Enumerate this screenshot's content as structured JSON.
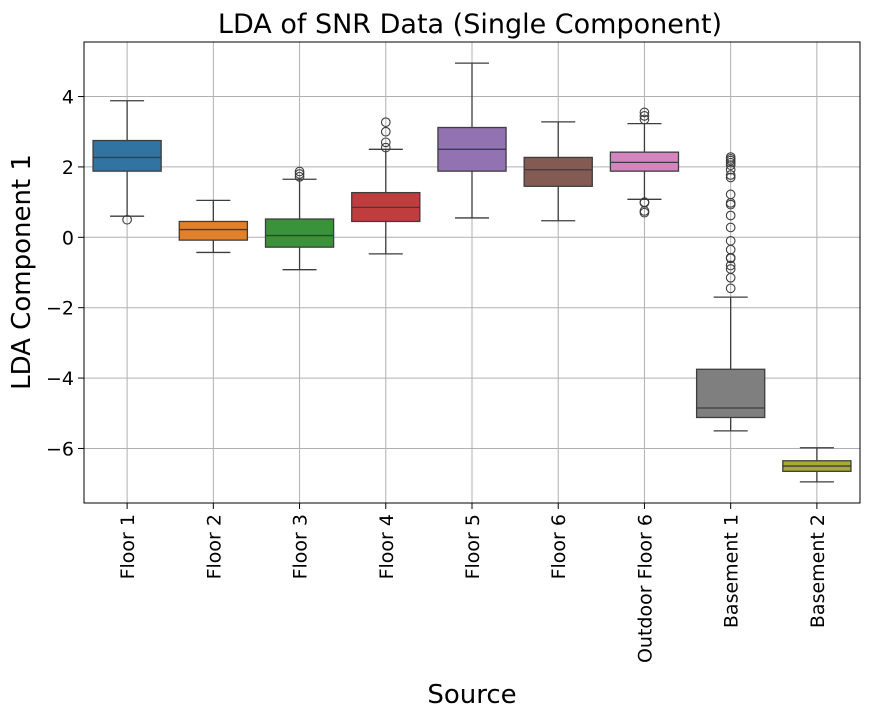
{
  "chart_data": {
    "type": "box",
    "title": "LDA of SNR Data (Single Component)",
    "xlabel": "Source",
    "ylabel": "LDA Component 1",
    "ylim": [
      -7.55,
      5.55
    ],
    "yticks": [
      -6,
      -4,
      -2,
      0,
      2,
      4
    ],
    "ytick_labels": [
      "−6",
      "−4",
      "−2",
      "0",
      "2",
      "4"
    ],
    "grid": true,
    "categories": [
      "Floor 1",
      "Floor 2",
      "Floor 3",
      "Floor 4",
      "Floor 5",
      "Floor 6",
      "Outdoor Floor 6",
      "Basement 1",
      "Basement 2"
    ],
    "boxes": [
      {
        "category": "Floor 1",
        "whisker_low": 0.6,
        "q1": 1.88,
        "median": 2.27,
        "q3": 2.75,
        "whisker_high": 3.88,
        "outliers": [
          0.5
        ],
        "color": "#3274a1"
      },
      {
        "category": "Floor 2",
        "whisker_low": -0.43,
        "q1": -0.08,
        "median": 0.22,
        "q3": 0.45,
        "whisker_high": 1.05,
        "outliers": [],
        "color": "#e1812c"
      },
      {
        "category": "Floor 3",
        "whisker_low": -0.92,
        "q1": -0.28,
        "median": 0.05,
        "q3": 0.52,
        "whisker_high": 1.65,
        "outliers": [
          1.72,
          1.8,
          1.87
        ],
        "color": "#3a923a"
      },
      {
        "category": "Floor 4",
        "whisker_low": -0.47,
        "q1": 0.45,
        "median": 0.85,
        "q3": 1.27,
        "whisker_high": 2.5,
        "outliers": [
          2.55,
          2.7,
          3.0,
          3.27
        ],
        "color": "#c03d3e"
      },
      {
        "category": "Floor 5",
        "whisker_low": 0.55,
        "q1": 1.88,
        "median": 2.5,
        "q3": 3.12,
        "whisker_high": 4.95,
        "outliers": [],
        "color": "#9372b2"
      },
      {
        "category": "Floor 6",
        "whisker_low": 0.47,
        "q1": 1.45,
        "median": 1.92,
        "q3": 2.27,
        "whisker_high": 3.28,
        "outliers": [],
        "color": "#845b53"
      },
      {
        "category": "Outdoor Floor 6",
        "whisker_low": 1.08,
        "q1": 1.88,
        "median": 2.13,
        "q3": 2.42,
        "whisker_high": 3.23,
        "outliers": [
          0.7,
          0.75,
          0.98,
          1.0,
          3.35,
          3.45,
          3.55
        ],
        "color": "#d684bd"
      },
      {
        "category": "Basement 1",
        "whisker_low": -5.5,
        "q1": -5.12,
        "median": -4.85,
        "q3": -3.75,
        "whisker_high": -1.7,
        "outliers": [
          -1.45,
          -1.15,
          -0.9,
          -0.8,
          -0.6,
          -0.58,
          -0.35,
          -0.1,
          0.28,
          0.62,
          0.93,
          0.98,
          1.22,
          1.7,
          1.77,
          1.92,
          2.05,
          2.12,
          2.18,
          2.23,
          2.28
        ],
        "color": "#7f7f7f"
      },
      {
        "category": "Basement 2",
        "whisker_low": -6.95,
        "q1": -6.65,
        "median": -6.5,
        "q3": -6.35,
        "whisker_high": -5.98,
        "outliers": [],
        "color": "#a9a937"
      }
    ]
  }
}
